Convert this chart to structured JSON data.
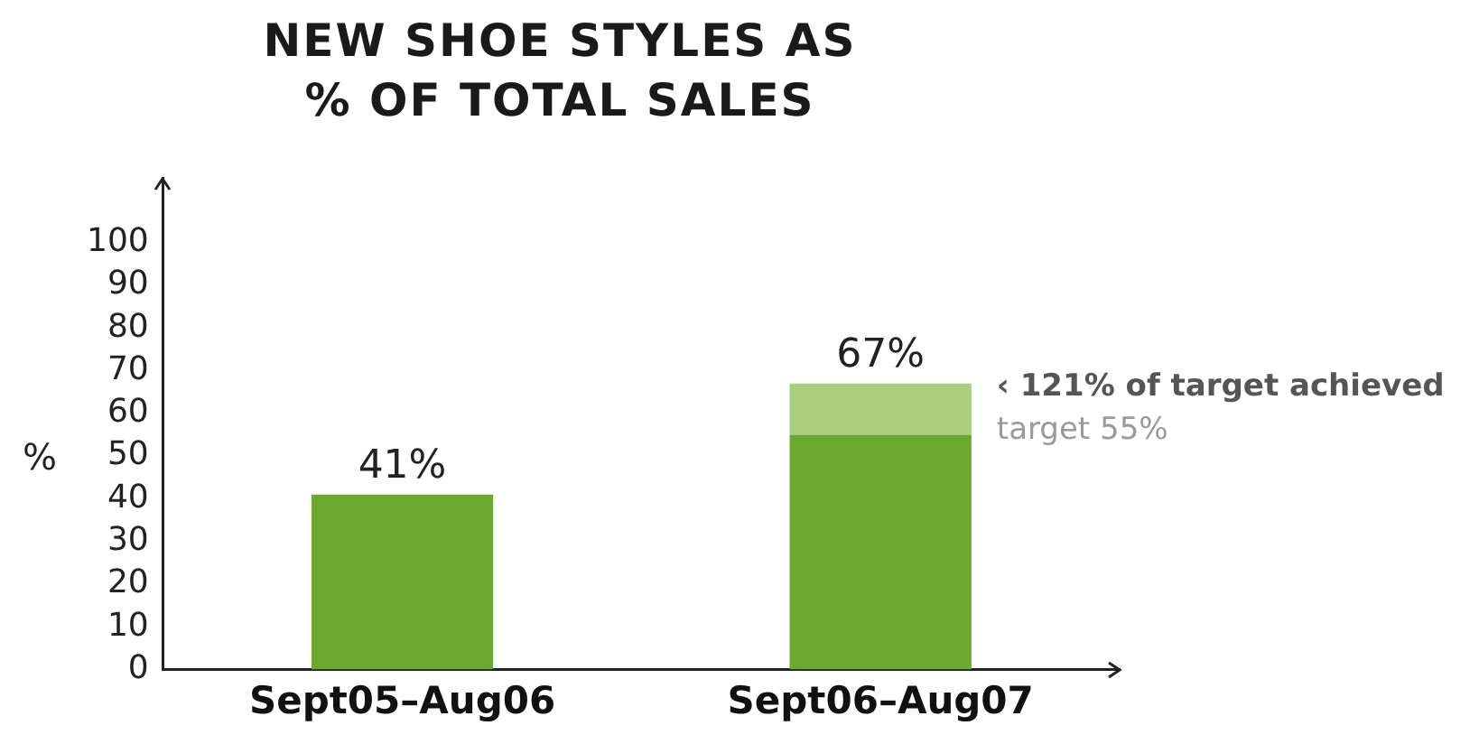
{
  "chart_data": {
    "type": "bar",
    "title": "NEW SHOE STYLES AS % OF TOTAL SALES",
    "ylabel": "%",
    "categories": [
      "Sept05–Aug06",
      "Sept06–Aug07"
    ],
    "stacked": true,
    "series": [
      {
        "color": "#6aa82e",
        "values": [
          41,
          55
        ]
      },
      {
        "color": "#a9cf7f",
        "values": [
          null,
          12
        ]
      }
    ],
    "totals": [
      "41%",
      "67%"
    ],
    "ylim": [
      0,
      115
    ],
    "yticks": [
      0,
      10,
      20,
      30,
      40,
      50,
      60,
      70,
      80,
      90,
      100
    ],
    "grid": false,
    "legend": false,
    "annotations": [
      "‹ 121% of target achieved",
      "target 55%"
    ]
  }
}
